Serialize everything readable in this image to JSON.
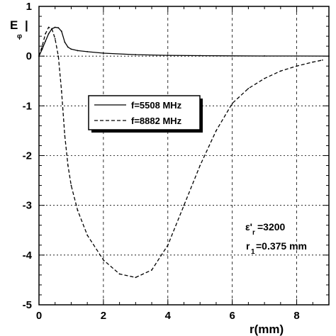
{
  "chart_data": {
    "type": "line",
    "ylabel_main": "E",
    "ylabel_sub": "φ",
    "ylabel_bar": "|",
    "xlabel": "r(mm)",
    "xlim": [
      0,
      9
    ],
    "ylim": [
      -5,
      1
    ],
    "x_ticks": [
      0,
      2,
      4,
      6,
      8
    ],
    "y_ticks": [
      1,
      0,
      -1,
      -2,
      -3,
      -4,
      -5
    ],
    "x_tick_labels": [
      "0",
      "2",
      "4",
      "6",
      "8"
    ],
    "y_tick_labels": [
      "1",
      "0",
      "-1",
      "-2",
      "-3",
      "-4",
      "-5"
    ],
    "grid": true,
    "legend_placement": "center-left",
    "series": [
      {
        "name": "f=5508 MHz",
        "style": "solid",
        "color": "#000000",
        "x": [
          0,
          0.1,
          0.2,
          0.3,
          0.4,
          0.5,
          0.6,
          0.7,
          0.8,
          0.9,
          1.0,
          1.2,
          1.5,
          2.0,
          3.0,
          4.0,
          5.0,
          6.0,
          7.0,
          8.0,
          9.0
        ],
        "y": [
          0,
          0.14,
          0.3,
          0.45,
          0.55,
          0.58,
          0.57,
          0.5,
          0.28,
          0.18,
          0.14,
          0.11,
          0.09,
          0.06,
          0.03,
          0.015,
          0.01,
          0.005,
          0.003,
          0.002,
          0.001
        ]
      },
      {
        "name": "f=8882 MHz",
        "style": "dashed",
        "color": "#000000",
        "x": [
          0,
          0.1,
          0.2,
          0.3,
          0.4,
          0.5,
          0.6,
          0.7,
          0.8,
          0.9,
          1.0,
          1.2,
          1.5,
          2.0,
          2.5,
          3.0,
          3.5,
          4.0,
          4.5,
          5.0,
          5.5,
          6.0,
          6.5,
          7.0,
          7.5,
          8.0,
          8.5,
          8.8
        ],
        "y": [
          0,
          0.2,
          0.45,
          0.58,
          0.55,
          0.35,
          0.0,
          -0.7,
          -1.6,
          -2.2,
          -2.6,
          -3.1,
          -3.6,
          -4.1,
          -4.38,
          -4.45,
          -4.3,
          -3.8,
          -3.0,
          -2.2,
          -1.5,
          -0.95,
          -0.65,
          -0.45,
          -0.3,
          -0.2,
          -0.12,
          -0.08
        ]
      }
    ],
    "annotations": {
      "eps_main": "ε'",
      "eps_sub": "r",
      "eps_value": "=3200",
      "r_main": "r",
      "r_sub": "1",
      "r_value": "=0.375 mm"
    }
  }
}
